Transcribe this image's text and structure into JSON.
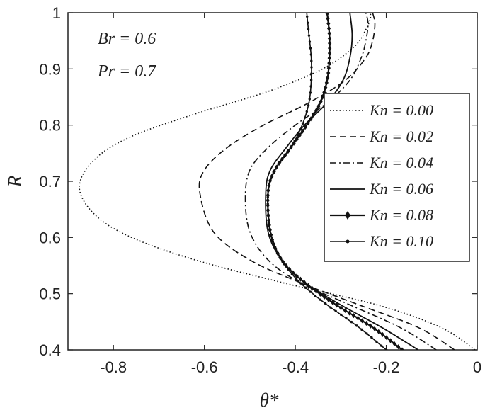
{
  "chart_data": {
    "type": "line",
    "xlabel": "θ*",
    "ylabel": "R",
    "xlim": [
      -0.9,
      0
    ],
    "ylim": [
      0.4,
      1.0
    ],
    "x_ticks": [
      "-0.8",
      "-0.6",
      "-0.4",
      "-0.2",
      "0"
    ],
    "y_ticks": [
      "0.4",
      "0.5",
      "0.6",
      "0.7",
      "0.8",
      "0.9",
      "1"
    ],
    "grid": false,
    "legend_position": "right",
    "annotations": [
      "Br = 0.6",
      "Pr = 0.7"
    ],
    "series": [
      {
        "name": "Kn = 0.00",
        "style": "dotted",
        "points": [
          [
            -0.005,
            0.4
          ],
          [
            -0.08,
            0.44
          ],
          [
            -0.22,
            0.48
          ],
          [
            -0.43,
            0.52
          ],
          [
            -0.62,
            0.56
          ],
          [
            -0.76,
            0.6
          ],
          [
            -0.84,
            0.64
          ],
          [
            -0.875,
            0.69
          ],
          [
            -0.84,
            0.74
          ],
          [
            -0.76,
            0.78
          ],
          [
            -0.62,
            0.82
          ],
          [
            -0.46,
            0.86
          ],
          [
            -0.34,
            0.9
          ],
          [
            -0.27,
            0.94
          ],
          [
            -0.245,
            0.97
          ],
          [
            -0.235,
            0.99
          ],
          [
            -0.235,
            1.0
          ]
        ]
      },
      {
        "name": "Kn = 0.02",
        "style": "dashed",
        "points": [
          [
            -0.05,
            0.4
          ],
          [
            -0.13,
            0.44
          ],
          [
            -0.26,
            0.48
          ],
          [
            -0.39,
            0.52
          ],
          [
            -0.5,
            0.56
          ],
          [
            -0.58,
            0.61
          ],
          [
            -0.61,
            0.68
          ],
          [
            -0.6,
            0.72
          ],
          [
            -0.55,
            0.76
          ],
          [
            -0.47,
            0.8
          ],
          [
            -0.37,
            0.84
          ],
          [
            -0.29,
            0.88
          ],
          [
            -0.245,
            0.92
          ],
          [
            -0.23,
            0.95
          ],
          [
            -0.225,
            0.98
          ],
          [
            -0.23,
            1.0
          ]
        ]
      },
      {
        "name": "Kn = 0.04",
        "style": "dashdot",
        "points": [
          [
            -0.09,
            0.4
          ],
          [
            -0.17,
            0.44
          ],
          [
            -0.28,
            0.48
          ],
          [
            -0.39,
            0.52
          ],
          [
            -0.46,
            0.56
          ],
          [
            -0.5,
            0.61
          ],
          [
            -0.51,
            0.67
          ],
          [
            -0.5,
            0.72
          ],
          [
            -0.46,
            0.76
          ],
          [
            -0.4,
            0.8
          ],
          [
            -0.33,
            0.84
          ],
          [
            -0.28,
            0.88
          ],
          [
            -0.255,
            0.92
          ],
          [
            -0.245,
            0.95
          ],
          [
            -0.24,
            0.98
          ],
          [
            -0.245,
            1.0
          ]
        ]
      },
      {
        "name": "Kn = 0.06",
        "style": "solid",
        "points": [
          [
            -0.13,
            0.4
          ],
          [
            -0.21,
            0.44
          ],
          [
            -0.3,
            0.48
          ],
          [
            -0.38,
            0.52
          ],
          [
            -0.43,
            0.56
          ],
          [
            -0.46,
            0.61
          ],
          [
            -0.465,
            0.68
          ],
          [
            -0.455,
            0.72
          ],
          [
            -0.42,
            0.76
          ],
          [
            -0.38,
            0.8
          ],
          [
            -0.33,
            0.84
          ],
          [
            -0.295,
            0.88
          ],
          [
            -0.28,
            0.92
          ],
          [
            -0.275,
            0.96
          ],
          [
            -0.28,
            1.0
          ]
        ]
      },
      {
        "name": "Kn = 0.08",
        "style": "diamond",
        "points": [
          [
            -0.165,
            0.4
          ],
          [
            -0.23,
            0.44
          ],
          [
            -0.31,
            0.48
          ],
          [
            -0.38,
            0.52
          ],
          [
            -0.43,
            0.56
          ],
          [
            -0.455,
            0.61
          ],
          [
            -0.46,
            0.68
          ],
          [
            -0.445,
            0.72
          ],
          [
            -0.41,
            0.76
          ],
          [
            -0.375,
            0.8
          ],
          [
            -0.345,
            0.84
          ],
          [
            -0.33,
            0.88
          ],
          [
            -0.325,
            0.92
          ],
          [
            -0.325,
            0.96
          ],
          [
            -0.33,
            1.0
          ]
        ]
      },
      {
        "name": "Kn = 0.10",
        "style": "dot-marker",
        "points": [
          [
            -0.2,
            0.4
          ],
          [
            -0.26,
            0.44
          ],
          [
            -0.33,
            0.48
          ],
          [
            -0.39,
            0.52
          ],
          [
            -0.43,
            0.56
          ],
          [
            -0.455,
            0.61
          ],
          [
            -0.46,
            0.68
          ],
          [
            -0.445,
            0.72
          ],
          [
            -0.41,
            0.76
          ],
          [
            -0.385,
            0.8
          ],
          [
            -0.37,
            0.84
          ],
          [
            -0.365,
            0.88
          ],
          [
            -0.365,
            0.92
          ],
          [
            -0.37,
            0.96
          ],
          [
            -0.375,
            1.0
          ]
        ]
      }
    ]
  }
}
